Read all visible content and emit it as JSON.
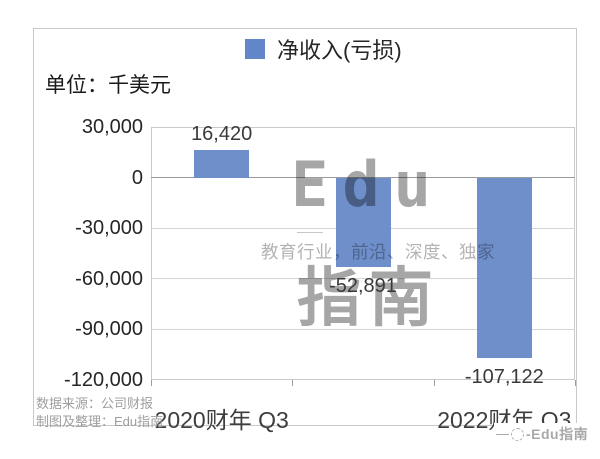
{
  "chart_data": {
    "type": "bar",
    "title": "净收入(亏损)",
    "unit_label": "单位：千美元",
    "legend": [
      {
        "label": "净收入(亏损)",
        "color": "#6286C8"
      }
    ],
    "legend_position": "top-center",
    "num_categories": 3,
    "series": [
      {
        "name": "净收入(亏损)",
        "values": [
          16420,
          -52891,
          -107122
        ],
        "data_labels": [
          "16,420",
          "-52,891",
          "-107,122"
        ]
      }
    ],
    "x_axis": {
      "tick_labels": [
        {
          "text": "2020财年 Q3",
          "category_index": 0
        },
        {
          "text": "2022财年 Q3",
          "category_index": 2
        }
      ]
    },
    "y_axis": {
      "range": [
        -120000,
        30000
      ],
      "ticks": [
        {
          "value": 30000,
          "label": "30,000"
        },
        {
          "value": 0,
          "label": "0"
        },
        {
          "value": -30000,
          "label": "-30,000"
        },
        {
          "value": -60000,
          "label": "-60,000"
        },
        {
          "value": -90000,
          "label": "-90,000"
        },
        {
          "value": -120000,
          "label": "-120,000"
        }
      ],
      "grid": true
    },
    "bar_color": "#6F8FCB",
    "gridline_color": "#D5D5D5",
    "zero_axis_color": "#9B9B9B"
  },
  "watermark": {
    "brand_top": "Edu",
    "tagline": "教育行业，前沿、深度、独家",
    "brand_bottom": "指南",
    "corner_text": "-Edu指南"
  },
  "footer": {
    "source_line": "数据来源：公司财报",
    "credit_line": "制图及整理：Edu指南"
  }
}
